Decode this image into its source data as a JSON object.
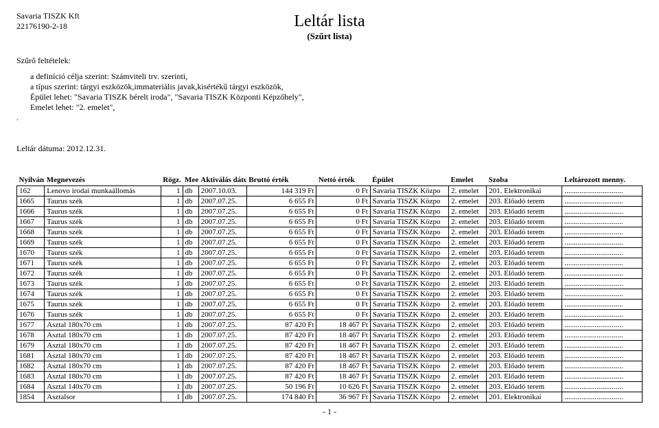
{
  "company": {
    "name": "Savaria TISZK Kft",
    "taxid": "22176190-2-18"
  },
  "title": "Leltár lista",
  "subtitle": "(Szűrt lista)",
  "filter_label": "Szűrő feltételek:",
  "filter_lines": [
    "a definíció célja szerint: Számviteli trv. szerinti,",
    "a típus szerint: tárgyi eszközök,immateriális javak,kisértékű tárgyi eszközök,",
    "Épület lehet: \"Savaria TISZK bérelt iroda\", \"Savaria TISZK Központi Képzőhely\",",
    "Emelet lehet: \"2. emelet\","
  ],
  "filter_trailing": ".",
  "date_line": "Leltár dátuma: 2012.12.31.",
  "columns": [
    "Nyilvántartási sz.",
    "Megnevezés",
    "Rögz. menny.",
    "Mee",
    "Aktiválás dátuma",
    "Bruttó érték",
    "Nettó érték",
    "Épület",
    "Emelet",
    "Szoba",
    "Leltározott menny."
  ],
  "rows": [
    {
      "id": "162",
      "name": "Lenovo irodai munkaállomás",
      "qty": "1",
      "unit": "db",
      "date": "2007.10.03.",
      "gross": "144 319 Ft",
      "net": "0 Ft",
      "bldg": "Savaria TISZK Közpo",
      "floor": "2. emelet",
      "room": "201. Elektronikai"
    },
    {
      "id": "1665",
      "name": "Taurus szék",
      "qty": "1",
      "unit": "db",
      "date": "2007.07.25.",
      "gross": "6 655 Ft",
      "net": "0 Ft",
      "bldg": "Savaria TISZK Közpo",
      "floor": "2. emelet",
      "room": "203. Előadó terem"
    },
    {
      "id": "1666",
      "name": "Taurus szék",
      "qty": "1",
      "unit": "db",
      "date": "2007.07.25.",
      "gross": "6 655 Ft",
      "net": "0 Ft",
      "bldg": "Savaria TISZK Közpo",
      "floor": "2. emelet",
      "room": "203. Előadó terem"
    },
    {
      "id": "1667",
      "name": "Taurus szék",
      "qty": "1",
      "unit": "db",
      "date": "2007.07.25.",
      "gross": "6 655 Ft",
      "net": "0 Ft",
      "bldg": "Savaria TISZK Közpo",
      "floor": "2. emelet",
      "room": "203. Előadó terem"
    },
    {
      "id": "1668",
      "name": "Taurus szék",
      "qty": "1",
      "unit": "db",
      "date": "2007.07.25.",
      "gross": "6 655 Ft",
      "net": "0 Ft",
      "bldg": "Savaria TISZK Közpo",
      "floor": "2. emelet",
      "room": "203. Előadó terem"
    },
    {
      "id": "1669",
      "name": "Taurus szék",
      "qty": "1",
      "unit": "db",
      "date": "2007.07.25.",
      "gross": "6 655 Ft",
      "net": "0 Ft",
      "bldg": "Savaria TISZK Közpo",
      "floor": "2. emelet",
      "room": "203. Előadó terem"
    },
    {
      "id": "1670",
      "name": "Taurus szék",
      "qty": "1",
      "unit": "db",
      "date": "2007.07.25.",
      "gross": "6 655 Ft",
      "net": "0 Ft",
      "bldg": "Savaria TISZK Közpo",
      "floor": "2. emelet",
      "room": "203. Előadó terem"
    },
    {
      "id": "1671",
      "name": "Taurus szék",
      "qty": "1",
      "unit": "db",
      "date": "2007.07.25.",
      "gross": "6 655 Ft",
      "net": "0 Ft",
      "bldg": "Savaria TISZK Közpo",
      "floor": "2. emelet",
      "room": "203. Előadó terem"
    },
    {
      "id": "1672",
      "name": "Taurus szék",
      "qty": "1",
      "unit": "db",
      "date": "2007.07.25.",
      "gross": "6 655 Ft",
      "net": "0 Ft",
      "bldg": "Savaria TISZK Közpo",
      "floor": "2. emelet",
      "room": "203. Előadó terem"
    },
    {
      "id": "1673",
      "name": "Taurus szék",
      "qty": "1",
      "unit": "db",
      "date": "2007.07.25.",
      "gross": "6 655 Ft",
      "net": "0 Ft",
      "bldg": "Savaria TISZK Közpo",
      "floor": "2. emelet",
      "room": "203. Előadó terem"
    },
    {
      "id": "1674",
      "name": "Taurus szék",
      "qty": "1",
      "unit": "db",
      "date": "2007.07.25.",
      "gross": "6 655 Ft",
      "net": "0 Ft",
      "bldg": "Savaria TISZK Közpo",
      "floor": "2. emelet",
      "room": "203. Előadó terem"
    },
    {
      "id": "1675",
      "name": "Taurus szék",
      "qty": "1",
      "unit": "db",
      "date": "2007.07.25.",
      "gross": "6 655 Ft",
      "net": "0 Ft",
      "bldg": "Savaria TISZK Közpo",
      "floor": "2. emelet",
      "room": "203. Előadó terem"
    },
    {
      "id": "1676",
      "name": "Taurus szék",
      "qty": "1",
      "unit": "db",
      "date": "2007.07.25.",
      "gross": "6 655 Ft",
      "net": "0 Ft",
      "bldg": "Savaria TISZK Közpo",
      "floor": "2. emelet",
      "room": "203. Előadó terem"
    },
    {
      "id": "1677",
      "name": "Asztal 180x70 cm",
      "qty": "1",
      "unit": "db",
      "date": "2007.07.25.",
      "gross": "87 420 Ft",
      "net": "18 467 Ft",
      "bldg": "Savaria TISZK Közpo",
      "floor": "2. emelet",
      "room": "203. Előadó terem"
    },
    {
      "id": "1678",
      "name": "Asztal 180x70 cm",
      "qty": "1",
      "unit": "db",
      "date": "2007.07.25.",
      "gross": "87 420 Ft",
      "net": "18 467 Ft",
      "bldg": "Savaria TISZK Közpo",
      "floor": "2. emelet",
      "room": "203. Előadó terem"
    },
    {
      "id": "1679",
      "name": "Asztal 180x70 cm",
      "qty": "1",
      "unit": "db",
      "date": "2007.07.25.",
      "gross": "87 420 Ft",
      "net": "18 467 Ft",
      "bldg": "Savaria TISZK Közpo",
      "floor": "2. emelet",
      "room": "203. Előadó terem"
    },
    {
      "id": "1681",
      "name": "Asztal 180x70 cm",
      "qty": "1",
      "unit": "db",
      "date": "2007.07.25.",
      "gross": "87 420 Ft",
      "net": "18 467 Ft",
      "bldg": "Savaria TISZK Közpo",
      "floor": "2. emelet",
      "room": "203. Előadó terem"
    },
    {
      "id": "1682",
      "name": "Asztal 180x70 cm",
      "qty": "1",
      "unit": "db",
      "date": "2007.07.25.",
      "gross": "87 420 Ft",
      "net": "18 467 Ft",
      "bldg": "Savaria TISZK Közpo",
      "floor": "2. emelet",
      "room": "203. Előadó terem"
    },
    {
      "id": "1683",
      "name": "Asztal 180x70 cm",
      "qty": "1",
      "unit": "db",
      "date": "2007.07.25.",
      "gross": "87 420 Ft",
      "net": "18 467 Ft",
      "bldg": "Savaria TISZK Közpo",
      "floor": "2. emelet",
      "room": "203. Előadó terem"
    },
    {
      "id": "1684",
      "name": "Asztal 140x70 cm",
      "qty": "1",
      "unit": "db",
      "date": "2007.07.25.",
      "gross": "50 196 Ft",
      "net": "10 626 Ft",
      "bldg": "Savaria TISZK Közpo",
      "floor": "2. emelet",
      "room": "203. Előadó terem"
    },
    {
      "id": "1854",
      "name": "Asztalsor",
      "qty": "1",
      "unit": "db",
      "date": "2007.07.25.",
      "gross": "174 840 Ft",
      "net": "36 967 Ft",
      "bldg": "Savaria TISZK Közpo",
      "floor": "2. emelet",
      "room": "201. Elektronikai"
    }
  ],
  "dots_fill": "...............................",
  "page_number": "- 1 -"
}
